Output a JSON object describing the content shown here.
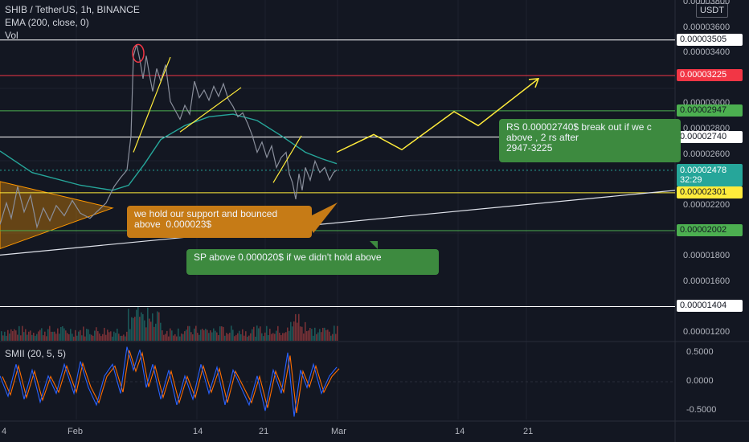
{
  "header": {
    "symbol_line": "SHIB / TetherUS, 1h, BINANCE",
    "indicator_line": "EMA (200, close, 0)",
    "volume_label": "Vol"
  },
  "currency_button": "USDT",
  "oscillator_label": "SMII (20, 5, 5)",
  "time_remaining": "32:29",
  "colors": {
    "background": "#131722",
    "ema": "#26a69a",
    "price": "#8a8f9c",
    "annotation_yellow": "#ffeb3b",
    "resistance_red": "#f23645",
    "support_green": "#4caf50",
    "triangle_orange": "#ff9800",
    "smi_blue": "#2962ff",
    "smi_orange": "#ff6d00"
  },
  "chart_data": {
    "type": "line",
    "price_axis": {
      "ticks": [
        "0.00003800",
        "0.00003600",
        "0.00003400",
        "0.00003000",
        "0.00002800",
        "0.00002600",
        "0.00002200",
        "0.00001800",
        "0.00001600",
        "0.00001200"
      ],
      "ylim": [
        1.16e-05,
        3.82e-05
      ]
    },
    "oscillator_axis": {
      "ticks": [
        "0.5000",
        "0.0000",
        "-0.5000"
      ],
      "ylim": [
        -0.65,
        0.65
      ]
    },
    "time_axis": {
      "ticks": [
        "4",
        "Feb",
        "14",
        "21",
        "Mar",
        "14",
        "21"
      ]
    },
    "price_lines": [
      {
        "label": "0.00003505",
        "value": 3.505e-05,
        "color": "#ffffff",
        "text_color": "#131722"
      },
      {
        "label": "0.00003225",
        "value": 3.225e-05,
        "color": "#f23645",
        "text_color": "#ffffff"
      },
      {
        "label": "0.00002947",
        "value": 2.947e-05,
        "color": "#4caf50",
        "text_color": "#131722"
      },
      {
        "label": "0.00002740",
        "value": 2.74e-05,
        "color": "#ffffff",
        "text_color": "#131722"
      },
      {
        "label": "0.00002301",
        "value": 2.301e-05,
        "color": "#ffeb3b",
        "text_color": "#131722"
      },
      {
        "label": "0.00002002",
        "value": 2.002e-05,
        "color": "#4caf50",
        "text_color": "#131722"
      },
      {
        "label": "0.00001404",
        "value": 1.404e-05,
        "color": "#ffffff",
        "text_color": "#131722"
      }
    ],
    "last_price": {
      "label": "0.00002478",
      "value": 2.478e-05,
      "color": "#26a69a"
    },
    "price_path": [
      [
        0,
        2.05e-05
      ],
      [
        8,
        2.22e-05
      ],
      [
        14,
        2.1e-05
      ],
      [
        22,
        2.35e-05
      ],
      [
        30,
        2.15e-05
      ],
      [
        38,
        2.28e-05
      ],
      [
        46,
        2.03e-05
      ],
      [
        54,
        2.18e-05
      ],
      [
        62,
        2.08e-05
      ],
      [
        70,
        2.2e-05
      ],
      [
        80,
        2.12e-05
      ],
      [
        90,
        2.24e-05
      ],
      [
        100,
        2.14e-05
      ],
      [
        112,
        2.1e-05
      ],
      [
        122,
        2.16e-05
      ],
      [
        132,
        2.22e-05
      ],
      [
        142,
        2.35e-05
      ],
      [
        150,
        2.42e-05
      ],
      [
        158,
        2.48e-05
      ],
      [
        163,
        2.75e-05
      ],
      [
        166,
        3.38e-05
      ],
      [
        170,
        3.47e-05
      ],
      [
        174,
        3.35e-05
      ],
      [
        178,
        3.2e-05
      ],
      [
        182,
        3.38e-05
      ],
      [
        186,
        3.23e-05
      ],
      [
        190,
        3.1e-05
      ],
      [
        195,
        3.28e-05
      ],
      [
        200,
        3.18e-05
      ],
      [
        206,
        3.31e-05
      ],
      [
        212,
        3.02e-05
      ],
      [
        218,
        2.95e-05
      ],
      [
        224,
        2.88e-05
      ],
      [
        230,
        2.99e-05
      ],
      [
        236,
        2.92e-05
      ],
      [
        242,
        3.18e-05
      ],
      [
        248,
        3.05e-05
      ],
      [
        254,
        3.11e-05
      ],
      [
        260,
        3.03e-05
      ],
      [
        266,
        3.14e-05
      ],
      [
        272,
        3.06e-05
      ],
      [
        278,
        3.16e-05
      ],
      [
        284,
        3.04e-05
      ],
      [
        290,
        2.98e-05
      ],
      [
        296,
        2.9e-05
      ],
      [
        302,
        2.93e-05
      ],
      [
        308,
        2.85e-05
      ],
      [
        314,
        2.75e-05
      ],
      [
        320,
        2.62e-05
      ],
      [
        326,
        2.7e-05
      ],
      [
        332,
        2.58e-05
      ],
      [
        338,
        2.67e-05
      ],
      [
        344,
        2.5e-05
      ],
      [
        350,
        2.58e-05
      ],
      [
        356,
        2.62e-05
      ],
      [
        360,
        2.45e-05
      ],
      [
        364,
        2.38e-05
      ],
      [
        368,
        2.25e-05
      ],
      [
        372,
        2.45e-05
      ],
      [
        376,
        2.32e-05
      ],
      [
        380,
        2.5e-05
      ],
      [
        386,
        2.4e-05
      ],
      [
        392,
        2.55e-05
      ],
      [
        398,
        2.46e-05
      ],
      [
        404,
        2.5e-05
      ],
      [
        410,
        2.4e-05
      ],
      [
        415,
        2.46e-05
      ],
      [
        419,
        2.48e-05
      ]
    ],
    "ema_path": [
      [
        0,
        2.63e-05
      ],
      [
        40,
        2.46e-05
      ],
      [
        100,
        2.36e-05
      ],
      [
        140,
        2.32e-05
      ],
      [
        160,
        2.36e-05
      ],
      [
        180,
        2.53e-05
      ],
      [
        200,
        2.72e-05
      ],
      [
        230,
        2.83e-05
      ],
      [
        260,
        2.9e-05
      ],
      [
        290,
        2.92e-05
      ],
      [
        320,
        2.87e-05
      ],
      [
        350,
        2.75e-05
      ],
      [
        380,
        2.62e-05
      ],
      [
        400,
        2.57e-05
      ],
      [
        419,
        2.53e-05
      ]
    ],
    "uptrend_line": [
      [
        0,
        1.81e-05
      ],
      [
        840,
        2.32e-05
      ]
    ],
    "projection_path": [
      [
        419,
        2.62e-05
      ],
      [
        465,
        2.76e-05
      ],
      [
        500,
        2.64e-05
      ],
      [
        565,
        2.94e-05
      ],
      [
        595,
        2.83e-05
      ],
      [
        670,
        3.2e-05
      ]
    ],
    "triangle_left": [
      [
        0,
        2.39e-05
      ],
      [
        140,
        2.18e-05
      ],
      [
        0,
        1.86e-05
      ]
    ],
    "smi_path": [
      [
        0,
        0.1
      ],
      [
        10,
        -0.25
      ],
      [
        20,
        0.3
      ],
      [
        30,
        -0.3
      ],
      [
        40,
        0.2
      ],
      [
        50,
        -0.35
      ],
      [
        60,
        0.1
      ],
      [
        70,
        -0.2
      ],
      [
        80,
        0.3
      ],
      [
        92,
        -0.2
      ],
      [
        100,
        0.35
      ],
      [
        110,
        -0.1
      ],
      [
        120,
        -0.4
      ],
      [
        130,
        0.1
      ],
      [
        140,
        0.3
      ],
      [
        150,
        -0.2
      ],
      [
        158,
        0.6
      ],
      [
        166,
        0.2
      ],
      [
        174,
        0.55
      ],
      [
        182,
        -0.1
      ],
      [
        190,
        0.3
      ],
      [
        200,
        -0.3
      ],
      [
        210,
        0.2
      ],
      [
        220,
        -0.4
      ],
      [
        230,
        0.1
      ],
      [
        240,
        -0.3
      ],
      [
        250,
        0.3
      ],
      [
        260,
        -0.2
      ],
      [
        270,
        0.25
      ],
      [
        280,
        -0.4
      ],
      [
        290,
        0.2
      ],
      [
        300,
        -0.1
      ],
      [
        310,
        -0.4
      ],
      [
        320,
        0.1
      ],
      [
        330,
        -0.5
      ],
      [
        340,
        0.2
      ],
      [
        350,
        -0.2
      ],
      [
        358,
        0.5
      ],
      [
        366,
        -0.6
      ],
      [
        374,
        0.2
      ],
      [
        382,
        -0.1
      ],
      [
        390,
        0.3
      ],
      [
        400,
        -0.2
      ],
      [
        410,
        0.1
      ],
      [
        419,
        0.25
      ]
    ]
  },
  "annotations": [
    {
      "text": "we hold our support and bounced\nabove  0.000023$",
      "fill": "#c67b16",
      "text_color": "#f0f3fa"
    },
    {
      "text": "SP above 0.000020$ if we didn't hold above",
      "fill": "#3d8a3f",
      "text_color": "#f0f3fa"
    },
    {
      "text": "RS 0.00002740$ break out if we c\nabove , 2 rs after\n2947-3225",
      "fill": "#3d8a3f",
      "text_color": "#f0f3fa"
    }
  ]
}
